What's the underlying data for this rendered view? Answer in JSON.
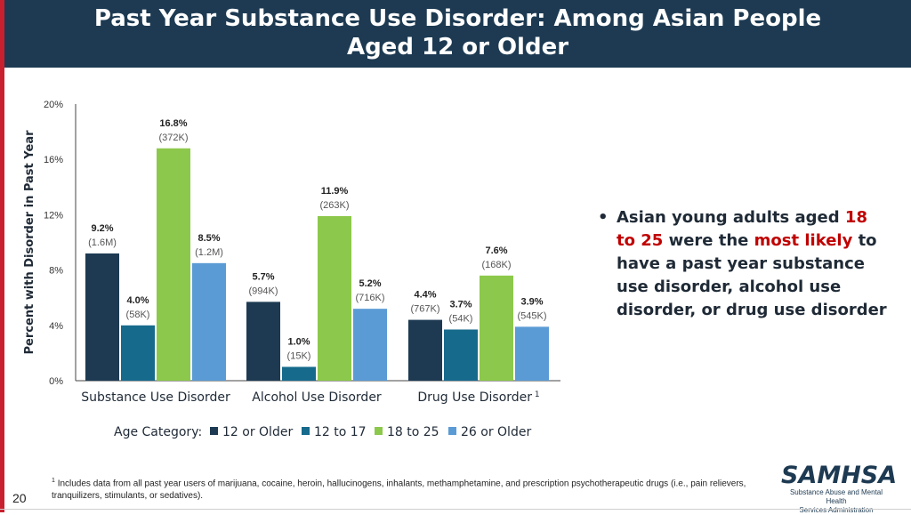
{
  "header": {
    "title_line1": "Past Year Substance Use Disorder: Among Asian People",
    "title_line2": "Aged 12 or Older"
  },
  "chart_data": {
    "type": "bar",
    "ylabel": "Percent with Disorder in Past Year",
    "ylim": [
      0,
      20
    ],
    "yticks": [
      "0%",
      "4%",
      "8%",
      "12%",
      "16%",
      "20%"
    ],
    "ytick_values": [
      0,
      4,
      8,
      12,
      16,
      20
    ],
    "grid": false,
    "categories": [
      "Substance Use Disorder",
      "Alcohol Use Disorder",
      "Drug Use Disorder"
    ],
    "category_superscripts": [
      "",
      "",
      "1"
    ],
    "legend_title": "Age Category:",
    "legend_position": "bottom",
    "series": [
      {
        "name": "12 or Older",
        "color": "#1d3a52",
        "values": [
          9.2,
          5.7,
          4.4
        ],
        "labels": [
          "9.2%",
          "5.7%",
          "4.4%"
        ],
        "counts": [
          "(1.6M)",
          "(994K)",
          "(767K)"
        ]
      },
      {
        "name": "12 to 17",
        "color": "#166a8c",
        "values": [
          4.0,
          1.0,
          3.7
        ],
        "labels": [
          "4.0%",
          "1.0%",
          "3.7%"
        ],
        "counts": [
          "(58K)",
          "(15K)",
          "(54K)"
        ]
      },
      {
        "name": "18 to 25",
        "color": "#8cc84b",
        "values": [
          16.8,
          11.9,
          7.6
        ],
        "labels": [
          "16.8%",
          "11.9%",
          "7.6%"
        ],
        "counts": [
          "(372K)",
          "(263K)",
          "(168K)"
        ]
      },
      {
        "name": "26 or Older",
        "color": "#5b9bd5",
        "values": [
          8.5,
          5.2,
          3.9
        ],
        "labels": [
          "8.5%",
          "5.2%",
          "3.9%"
        ],
        "counts": [
          "(1.2M)",
          "(716K)",
          "(545K)"
        ]
      }
    ]
  },
  "bullet": {
    "part1": "Asian young adults aged ",
    "highlight1": "18 to 25",
    "part2": " were the ",
    "highlight2": "most likely",
    "part3": " to have a past year substance use disorder, alcohol use disorder, or drug use disorder"
  },
  "footnote": {
    "marker": "1",
    "text": "Includes data from all past year users of marijuana, cocaine, heroin, hallucinogens, inhalants, methamphetamine, and prescription psychotherapeutic drugs (i.e., pain relievers, tranquilizers, stimulants, or sedatives)."
  },
  "page_number": "20",
  "logo": {
    "wordmark": "SAMHSA",
    "subtitle_line1": "Substance Abuse and Mental Health",
    "subtitle_line2": "Services Administration"
  },
  "colors": {
    "header_bg": "#1d3a52",
    "accent_red": "#c00000"
  }
}
